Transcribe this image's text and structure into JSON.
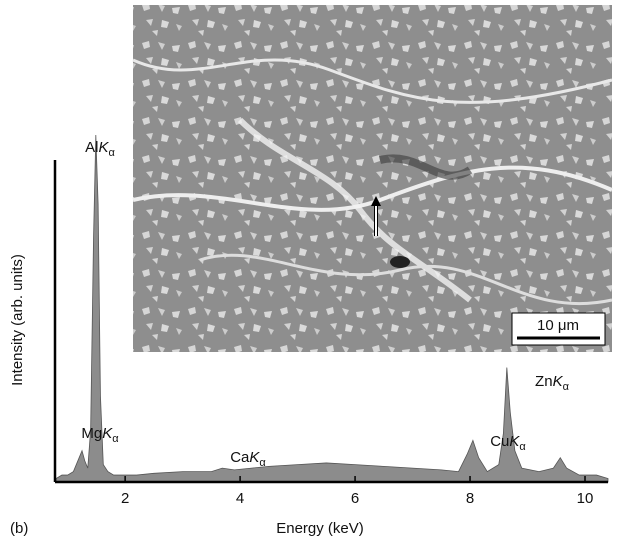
{
  "chart_data": {
    "type": "area",
    "x": [
      0.8,
      0.9,
      1.0,
      1.1,
      1.2,
      1.25,
      1.3,
      1.35,
      1.4,
      1.45,
      1.49,
      1.53,
      1.57,
      1.62,
      1.7,
      1.8,
      2.0,
      2.2,
      2.5,
      3.0,
      3.5,
      3.69,
      3.9,
      4.2,
      4.5,
      5.0,
      5.5,
      6.0,
      6.5,
      7.0,
      7.5,
      7.8,
      7.95,
      8.05,
      8.15,
      8.3,
      8.5,
      8.58,
      8.64,
      8.7,
      8.78,
      8.9,
      9.2,
      9.45,
      9.57,
      9.68,
      9.9,
      10.2,
      10.4
    ],
    "values": [
      1,
      2,
      2,
      3,
      7,
      9,
      6,
      4,
      15,
      70,
      100,
      80,
      25,
      5,
      3,
      2,
      2,
      2,
      2.5,
      3,
      3,
      4,
      3.5,
      4,
      4.5,
      5,
      5.5,
      5,
      4.5,
      4,
      3.5,
      3,
      8,
      12,
      7,
      3,
      5,
      14,
      33,
      20,
      9,
      4,
      3,
      4,
      7,
      4,
      2,
      2,
      1
    ],
    "color": "#8c8c8c",
    "xlim": [
      0.78,
      10.4
    ],
    "xticks": [
      2,
      4,
      6,
      8,
      10
    ],
    "ylim": [
      0,
      100
    ],
    "xlabel": "Energy (keV)",
    "ylabel": "Intensity (arb. units)",
    "annotations": [
      "AlKα",
      "MgKα",
      "CaKα",
      "CuKα",
      "ZnKα"
    ],
    "panel_label": "(b)",
    "inset_scale_bar": "10 μm"
  }
}
